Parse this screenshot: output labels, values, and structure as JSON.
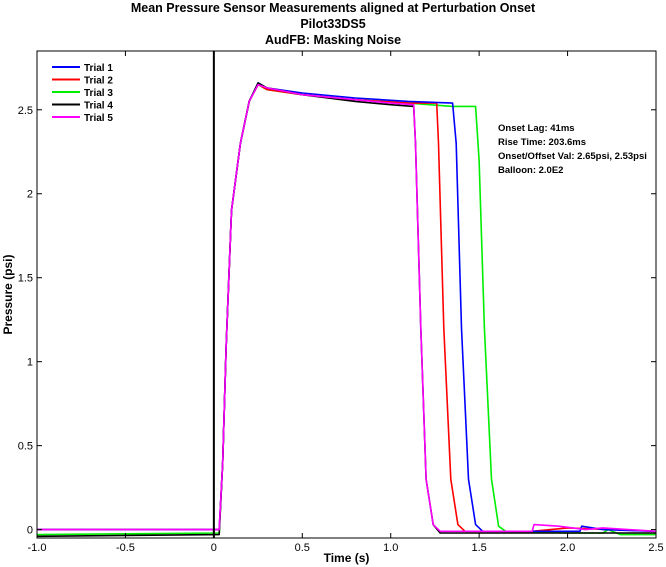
{
  "chart_data": {
    "type": "line",
    "title": "Mean Pressure Sensor Measurements aligned at Perturbation Onset",
    "subtitle1": "Pilot33DS5",
    "subtitle2": "AudFB: Masking Noise",
    "xlabel": "Time (s)",
    "ylabel": "Pressure (psi)",
    "xlim": [
      -1.0,
      2.5
    ],
    "ylim": [
      -0.05,
      2.85
    ],
    "xticks": [
      -1.0,
      -0.5,
      0,
      0.5,
      1.0,
      1.5,
      2.0,
      2.5
    ],
    "xtick_labels": [
      "-1.0",
      "-0.5",
      "0",
      "0.5",
      "1.0",
      "1.5",
      "2.0",
      "2.5"
    ],
    "yticks": [
      0,
      0.5,
      1,
      1.5,
      2,
      2.5
    ],
    "ytick_labels": [
      "0",
      "0.5",
      "1",
      "1.5",
      "2",
      "2.5"
    ],
    "grid": false,
    "legend_position": "top-left",
    "onset_line_x": 0,
    "annotations": [
      "Onset Lag: 41ms",
      "Rise Time: 203.6ms",
      "Onset/Offset Val: 2.65psi, 2.53psi",
      "Balloon: 2.0E2"
    ],
    "series": [
      {
        "name": "Trial 1",
        "color": "#0000ff",
        "points": [
          [
            -1.0,
            0.0
          ],
          [
            0.03,
            0.0
          ],
          [
            0.05,
            0.4
          ],
          [
            0.07,
            1.1
          ],
          [
            0.1,
            1.9
          ],
          [
            0.15,
            2.3
          ],
          [
            0.2,
            2.55
          ],
          [
            0.25,
            2.66
          ],
          [
            0.3,
            2.63
          ],
          [
            0.5,
            2.6
          ],
          [
            0.8,
            2.57
          ],
          [
            1.1,
            2.55
          ],
          [
            1.35,
            2.54
          ],
          [
            1.37,
            2.3
          ],
          [
            1.4,
            1.2
          ],
          [
            1.44,
            0.3
          ],
          [
            1.48,
            0.03
          ],
          [
            1.52,
            -0.01
          ],
          [
            2.0,
            -0.01
          ],
          [
            2.07,
            -0.01
          ],
          [
            2.08,
            0.02
          ],
          [
            2.2,
            0.0
          ],
          [
            2.5,
            -0.01
          ]
        ]
      },
      {
        "name": "Trial 2",
        "color": "#ff0000",
        "points": [
          [
            -1.0,
            0.0
          ],
          [
            0.03,
            0.0
          ],
          [
            0.05,
            0.4
          ],
          [
            0.07,
            1.1
          ],
          [
            0.1,
            1.9
          ],
          [
            0.15,
            2.3
          ],
          [
            0.2,
            2.55
          ],
          [
            0.25,
            2.65
          ],
          [
            0.3,
            2.62
          ],
          [
            0.5,
            2.59
          ],
          [
            0.8,
            2.56
          ],
          [
            1.1,
            2.54
          ],
          [
            1.26,
            2.54
          ],
          [
            1.27,
            2.3
          ],
          [
            1.3,
            1.2
          ],
          [
            1.34,
            0.3
          ],
          [
            1.38,
            0.03
          ],
          [
            1.42,
            -0.01
          ],
          [
            1.8,
            -0.01
          ],
          [
            2.0,
            0.01
          ],
          [
            2.5,
            -0.01
          ]
        ]
      },
      {
        "name": "Trial 3",
        "color": "#00ee00",
        "points": [
          [
            -1.0,
            -0.03
          ],
          [
            0.03,
            -0.02
          ],
          [
            0.05,
            0.4
          ],
          [
            0.07,
            1.1
          ],
          [
            0.1,
            1.9
          ],
          [
            0.15,
            2.3
          ],
          [
            0.2,
            2.55
          ],
          [
            0.25,
            2.65
          ],
          [
            0.3,
            2.62
          ],
          [
            0.5,
            2.59
          ],
          [
            0.8,
            2.56
          ],
          [
            1.1,
            2.54
          ],
          [
            1.35,
            2.52
          ],
          [
            1.48,
            2.52
          ],
          [
            1.5,
            2.2
          ],
          [
            1.53,
            1.2
          ],
          [
            1.57,
            0.3
          ],
          [
            1.61,
            0.02
          ],
          [
            1.65,
            -0.01
          ],
          [
            2.0,
            -0.02
          ],
          [
            2.2,
            -0.02
          ],
          [
            2.23,
            0.0
          ],
          [
            2.3,
            -0.03
          ],
          [
            2.5,
            -0.03
          ]
        ]
      },
      {
        "name": "Trial 4",
        "color": "#000000",
        "points": [
          [
            -1.0,
            -0.04
          ],
          [
            0.03,
            -0.03
          ],
          [
            0.05,
            0.4
          ],
          [
            0.07,
            1.1
          ],
          [
            0.1,
            1.9
          ],
          [
            0.15,
            2.3
          ],
          [
            0.2,
            2.55
          ],
          [
            0.25,
            2.66
          ],
          [
            0.3,
            2.63
          ],
          [
            0.5,
            2.59
          ],
          [
            0.8,
            2.55
          ],
          [
            1.0,
            2.53
          ],
          [
            1.13,
            2.52
          ],
          [
            1.14,
            2.3
          ],
          [
            1.17,
            1.2
          ],
          [
            1.2,
            0.3
          ],
          [
            1.24,
            0.03
          ],
          [
            1.28,
            -0.02
          ],
          [
            2.0,
            -0.02
          ],
          [
            2.5,
            -0.02
          ]
        ]
      },
      {
        "name": "Trial 5",
        "color": "#ff00ff",
        "points": [
          [
            -1.0,
            0.0
          ],
          [
            0.03,
            0.0
          ],
          [
            0.05,
            0.4
          ],
          [
            0.07,
            1.1
          ],
          [
            0.1,
            1.9
          ],
          [
            0.15,
            2.3
          ],
          [
            0.2,
            2.55
          ],
          [
            0.25,
            2.65
          ],
          [
            0.3,
            2.63
          ],
          [
            0.5,
            2.59
          ],
          [
            0.8,
            2.56
          ],
          [
            1.0,
            2.54
          ],
          [
            1.13,
            2.53
          ],
          [
            1.14,
            2.3
          ],
          [
            1.17,
            1.2
          ],
          [
            1.2,
            0.3
          ],
          [
            1.24,
            0.03
          ],
          [
            1.28,
            -0.01
          ],
          [
            1.8,
            -0.01
          ],
          [
            1.81,
            0.03
          ],
          [
            1.95,
            0.02
          ],
          [
            2.1,
            0.0
          ],
          [
            2.2,
            0.01
          ],
          [
            2.5,
            -0.01
          ]
        ]
      }
    ]
  }
}
